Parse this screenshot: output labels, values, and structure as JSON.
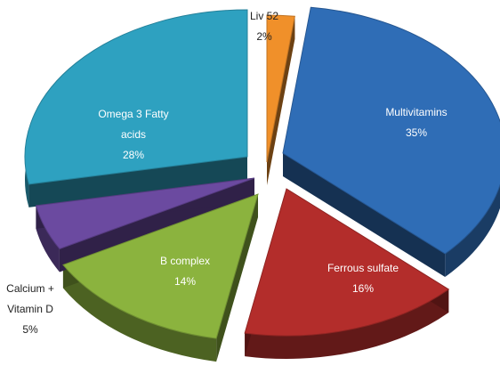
{
  "chart_data": {
    "type": "pie",
    "title": "",
    "slices": [
      {
        "key": "liv52",
        "name": "Liv 52",
        "pct_label": "2%",
        "value": 2,
        "color": "#f0902a"
      },
      {
        "key": "multivitamins",
        "name": "Multivitamins",
        "pct_label": "35%",
        "value": 35,
        "color": "#2f6db6"
      },
      {
        "key": "ferrous-sulfate",
        "name": "Ferrous sulfate",
        "pct_label": "16%",
        "value": 16,
        "color": "#b32d2b"
      },
      {
        "key": "b-complex",
        "name": "B complex",
        "pct_label": "14%",
        "value": 14,
        "color": "#8bb33e"
      },
      {
        "key": "calcium-vitamin-d",
        "name": "Calcium + Vitamin D",
        "name_lines": [
          "Calcium +",
          "Vitamin D"
        ],
        "pct_label": "5%",
        "value": 5,
        "color": "#6b4aa0"
      },
      {
        "key": "omega3",
        "name": "Omega 3 Fatty acids",
        "name_lines": [
          "Omega 3 Fatty",
          "acids"
        ],
        "pct_label": "28%",
        "value": 28,
        "color": "#2ea1c0"
      }
    ],
    "style": "3d-exploded"
  }
}
